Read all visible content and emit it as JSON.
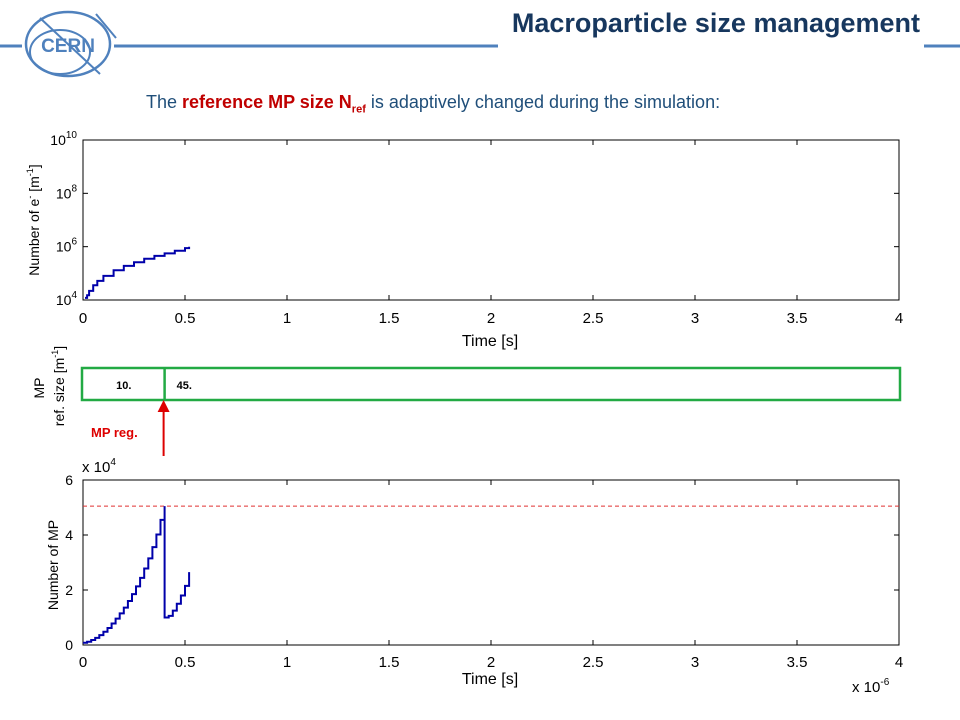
{
  "slide": {
    "title": "Macroparticle size management",
    "logo_text": "CERN",
    "subtitle": {
      "prefix": "The ",
      "highlight": "reference MP size N",
      "highlight_sub": "ref",
      "suffix": " is adaptively changed during the simulation:"
    },
    "colors": {
      "title": "#17375e",
      "accent_line": "#4f81bd",
      "highlight": "#c00000",
      "series": "#0000aa",
      "threshold": "#e03030",
      "refsize_box": "#22aa44",
      "arrow": "#dd0000"
    }
  },
  "refsize_strip": {
    "ylabel_line1": "MP",
    "ylabel_line2": "ref. size [m",
    "ylabel_sup": "-1",
    "ylabel_close": "]",
    "segments": [
      {
        "label": "10.",
        "from": 0.0,
        "to": 0.4
      },
      {
        "label": "45.",
        "from": 0.4,
        "to": 4.0
      }
    ],
    "marker_label": "MP reg.",
    "marker_time": 0.4
  },
  "chart_data": [
    {
      "type": "line",
      "xlabel": "Time [s]",
      "ylabel": "Number of e",
      "ylabel_sup1": "-",
      "ylabel_mid": " [m",
      "ylabel_sup2": "-1",
      "ylabel_end": "]",
      "yscale": "log",
      "xlim": [
        0,
        4
      ],
      "ylim": [
        10000,
        10000000000
      ],
      "xticks": [
        "0",
        "0.5",
        "1",
        "1.5",
        "2",
        "2.5",
        "3",
        "3.5",
        "4"
      ],
      "yticks": [
        {
          "base": "10",
          "exp": "4"
        },
        {
          "base": "10",
          "exp": "6"
        },
        {
          "base": "10",
          "exp": "8"
        },
        {
          "base": "10",
          "exp": "10"
        }
      ],
      "x_units": "1e-6",
      "series": [
        {
          "x": [
            0.01,
            0.02,
            0.03,
            0.05,
            0.07,
            0.1,
            0.15,
            0.2,
            0.25,
            0.3,
            0.35,
            0.4,
            0.45,
            0.5,
            0.52
          ],
          "y": [
            12000,
            15000,
            22000,
            36000,
            52000,
            80000,
            130000,
            190000,
            260000,
            350000,
            450000,
            560000,
            700000,
            880000,
            1000000
          ]
        }
      ]
    },
    {
      "type": "line",
      "xlabel": "Time [s]",
      "ylabel": "Number of MP",
      "xlim": [
        0,
        4
      ],
      "ylim": [
        0,
        60000
      ],
      "xticks": [
        "0",
        "0.5",
        "1",
        "1.5",
        "2",
        "2.5",
        "3",
        "3.5",
        "4"
      ],
      "yticks": [
        "0",
        "2",
        "4",
        "6"
      ],
      "y_multiplier": {
        "base": "x 10",
        "exp": "4"
      },
      "x_multiplier": {
        "base": "x 10",
        "exp": "-6"
      },
      "threshold": 50500,
      "series": [
        {
          "x": [
            0.0,
            0.02,
            0.04,
            0.06,
            0.08,
            0.1,
            0.12,
            0.14,
            0.16,
            0.18,
            0.2,
            0.22,
            0.24,
            0.26,
            0.28,
            0.3,
            0.32,
            0.34,
            0.36,
            0.38,
            0.4,
            0.4,
            0.42,
            0.44,
            0.46,
            0.48,
            0.5,
            0.52
          ],
          "y": [
            800,
            1200,
            1800,
            2600,
            3600,
            4800,
            6200,
            7800,
            9600,
            11500,
            13600,
            16000,
            18500,
            21300,
            24400,
            27800,
            31500,
            35600,
            40200,
            45500,
            50500,
            10000,
            10600,
            12500,
            15000,
            18000,
            21500,
            26500
          ]
        }
      ]
    }
  ]
}
